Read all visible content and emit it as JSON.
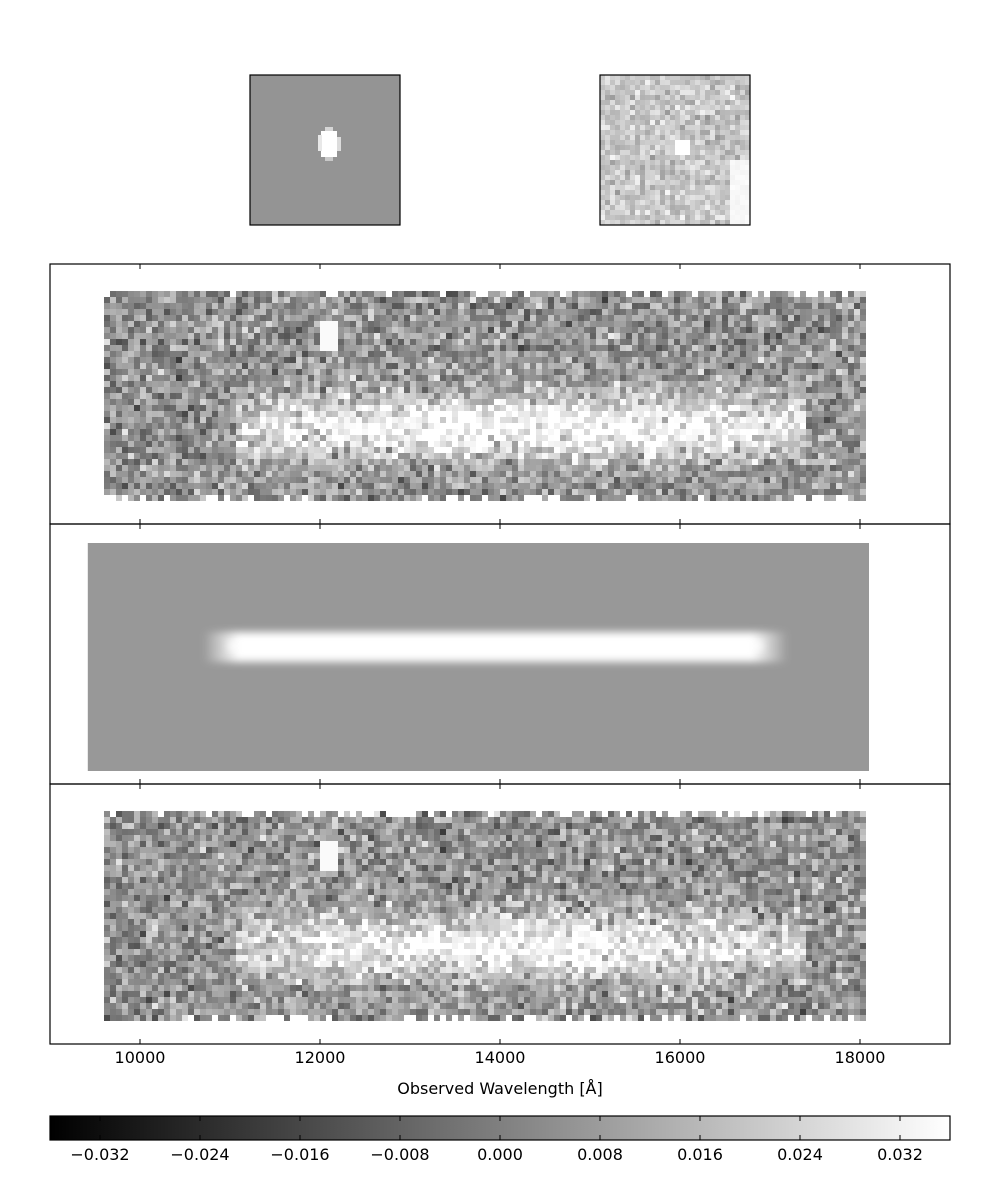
{
  "chart_data": {
    "type": "heatmap",
    "colormap": "gray",
    "thumbnails": [
      {
        "name": "direct-image-model",
        "description": "model direct image"
      },
      {
        "name": "direct-image-data",
        "description": "observed direct image"
      }
    ],
    "panels": [
      {
        "name": "observed-spectrum",
        "x_extent": [
          9600,
          18050
        ]
      },
      {
        "name": "model-spectrum",
        "x_extent": [
          9420,
          18100
        ]
      },
      {
        "name": "residual-spectrum",
        "x_extent": [
          9600,
          18050
        ]
      }
    ],
    "xlabel": "Observed Wavelength [Å]",
    "xlim": [
      9000,
      19000
    ],
    "xticks": [
      10000,
      12000,
      14000,
      16000,
      18000
    ],
    "xtick_labels": [
      "10000",
      "12000",
      "14000",
      "16000",
      "18000"
    ],
    "colorbar": {
      "vmin": -0.036,
      "vmax": 0.036,
      "ticks": [
        -0.032,
        -0.024,
        -0.016,
        -0.008,
        0.0,
        0.008,
        0.016,
        0.024,
        0.032
      ],
      "tick_labels": [
        "−0.032",
        "−0.024",
        "−0.016",
        "−0.008",
        "0.000",
        "0.008",
        "0.016",
        "0.024",
        "0.032"
      ]
    }
  }
}
